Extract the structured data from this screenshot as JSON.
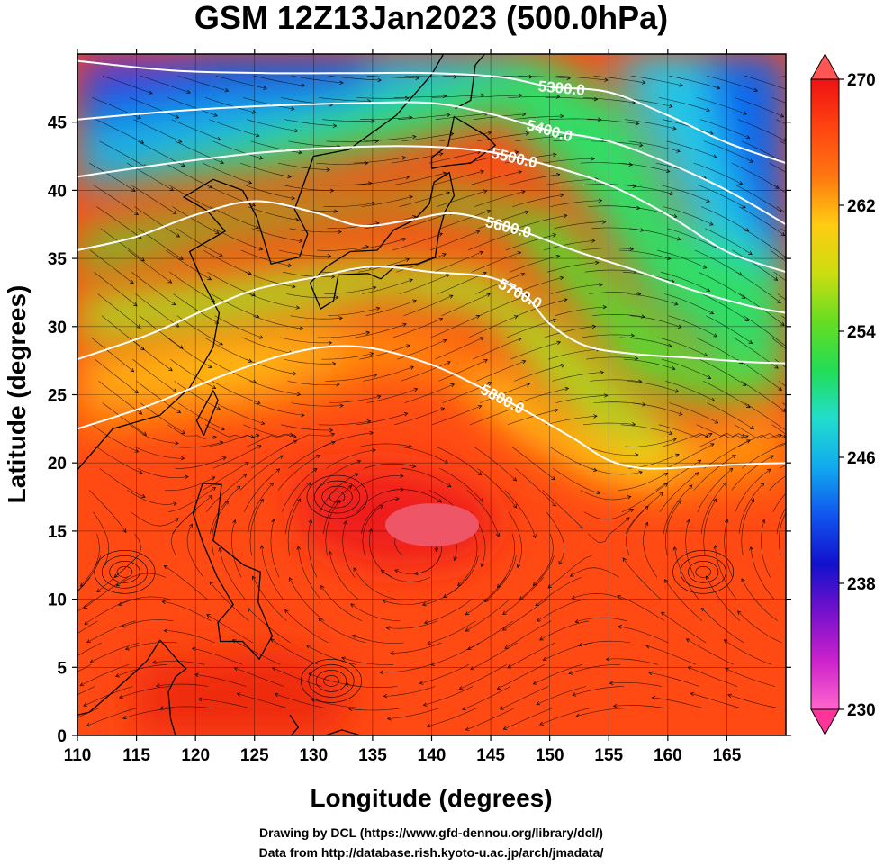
{
  "title": "GSM 12Z13Jan2023 (500.0hPa)",
  "xlabel": "Longitude (degrees)",
  "ylabel": "Latitude  (degrees)",
  "credits": [
    "Drawing by DCL (https://www.gfd-dennou.org/library/dcl/)",
    "Data from http://database.rish.kyoto-u.ac.jp/arch/jmadata/"
  ],
  "colors": {
    "ramp": [
      "#ff66cc",
      "#cc22cc",
      "#7711cc",
      "#1111cc",
      "#1155ee",
      "#11aaee",
      "#22ddcc",
      "#22dd55",
      "#66dd22",
      "#ccdd11",
      "#ffcc11",
      "#ff7711",
      "#ff4411",
      "#ee1111"
    ],
    "under_triangle": "#ff3399",
    "over_triangle": "#ff5555",
    "contour": "#ffffff",
    "streamline": "#000000",
    "coast": "#000000"
  },
  "chart_data": {
    "type": "heatmap",
    "variable": "temperature (K) with geopotential height contours and wind streamlines",
    "xlim": [
      110,
      170
    ],
    "ylim": [
      0,
      50
    ],
    "x_ticks": [
      "110",
      "115",
      "120",
      "125",
      "130",
      "135",
      "140",
      "145",
      "150",
      "155",
      "160",
      "165"
    ],
    "y_ticks": [
      "0",
      "5",
      "10",
      "15",
      "20",
      "25",
      "30",
      "35",
      "40",
      "45"
    ],
    "colorbar": {
      "range": [
        230,
        270
      ],
      "ticks": [
        "230",
        "238",
        "246",
        "254",
        "262",
        "270"
      ]
    },
    "contours": [
      {
        "label": "5300.0",
        "points": [
          [
            110,
            49.5
          ],
          [
            118,
            48.8
          ],
          [
            126,
            48.6
          ],
          [
            134,
            48.6
          ],
          [
            140,
            48.6
          ],
          [
            146,
            48.3
          ],
          [
            150,
            47.6
          ],
          [
            155,
            47.2
          ],
          [
            160,
            45.5
          ],
          [
            165,
            43.5
          ],
          [
            170,
            42
          ]
        ]
      },
      {
        "label": "5400.0",
        "points": [
          [
            110,
            45.2
          ],
          [
            118,
            45.8
          ],
          [
            126,
            46.2
          ],
          [
            134,
            46.4
          ],
          [
            140,
            46.4
          ],
          [
            145,
            45.6
          ],
          [
            150,
            44.4
          ],
          [
            155,
            43.6
          ],
          [
            160,
            42
          ],
          [
            165,
            40
          ],
          [
            170,
            37.5
          ]
        ]
      },
      {
        "label": "5500.0",
        "points": [
          [
            110,
            41
          ],
          [
            118,
            42
          ],
          [
            126,
            42.8
          ],
          [
            134,
            43.2
          ],
          [
            140,
            43.2
          ],
          [
            145,
            42.8
          ],
          [
            150,
            41.8
          ],
          [
            155,
            40.4
          ],
          [
            160,
            38.2
          ],
          [
            165,
            35.5
          ],
          [
            170,
            34
          ]
        ]
      },
      {
        "label": "5600.0",
        "points": [
          [
            110,
            35.6
          ],
          [
            115,
            36.6
          ],
          [
            120,
            38.2
          ],
          [
            125,
            39.2
          ],
          [
            130,
            38.4
          ],
          [
            134,
            37.4
          ],
          [
            138,
            37.8
          ],
          [
            142,
            38.3
          ],
          [
            147,
            37.2
          ],
          [
            152,
            35.6
          ],
          [
            157,
            34.2
          ],
          [
            162,
            32.7
          ],
          [
            167,
            31.5
          ],
          [
            170,
            31
          ]
        ]
      },
      {
        "label": "5700.0",
        "points": [
          [
            110,
            27.6
          ],
          [
            116,
            29.4
          ],
          [
            121,
            31.3
          ],
          [
            125,
            32.7
          ],
          [
            130,
            33.6
          ],
          [
            135,
            34.4
          ],
          [
            140,
            34
          ],
          [
            145,
            33.6
          ],
          [
            148,
            32.2
          ],
          [
            150,
            30.2
          ],
          [
            153,
            28.6
          ],
          [
            157,
            28
          ],
          [
            162,
            27.7
          ],
          [
            167,
            27.4
          ],
          [
            170,
            27.3
          ]
        ]
      },
      {
        "label": "5800.0",
        "points": [
          [
            110,
            22.5
          ],
          [
            116,
            24.2
          ],
          [
            122,
            26.3
          ],
          [
            127,
            27.8
          ],
          [
            131,
            28.5
          ],
          [
            135,
            28.4
          ],
          [
            140,
            27.2
          ],
          [
            144,
            25.6
          ],
          [
            148,
            23.8
          ],
          [
            152,
            21.8
          ],
          [
            155,
            20.2
          ],
          [
            158,
            19.6
          ],
          [
            162,
            19.7
          ],
          [
            166,
            19.9
          ],
          [
            170,
            20
          ]
        ]
      }
    ]
  }
}
